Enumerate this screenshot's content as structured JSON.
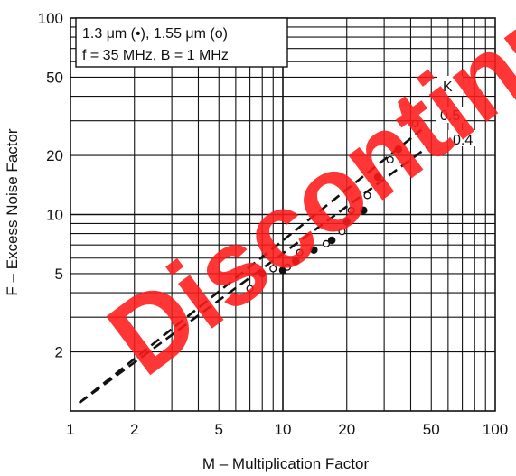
{
  "chart_data": {
    "type": "scatter",
    "xlabel": "M – Multiplication Factor",
    "ylabel": "F – Excess Noise Factor",
    "x_scale": "log",
    "y_scale": "log",
    "xlim": [
      1,
      100
    ],
    "ylim": [
      1,
      100
    ],
    "grid": true,
    "x_ticks": [
      {
        "value": 1,
        "label": "1"
      },
      {
        "value": 2,
        "label": "2"
      },
      {
        "value": 5,
        "label": "5"
      },
      {
        "value": 10,
        "label": "10"
      },
      {
        "value": 20,
        "label": "20"
      },
      {
        "value": 50,
        "label": "50"
      },
      {
        "value": 100,
        "label": "100"
      }
    ],
    "y_ticks": [
      {
        "value": 2,
        "label": "2"
      },
      {
        "value": 5,
        "label": "5"
      },
      {
        "value": 10,
        "label": "10"
      },
      {
        "value": 20,
        "label": "20"
      },
      {
        "value": 50,
        "label": "50"
      },
      {
        "value": 100,
        "label": "100"
      }
    ],
    "annotation_lines": [
      "1.3 μm (•), 1.55 μm (o)",
      "f = 35 MHz, B = 1 MHz"
    ],
    "k_label": "K",
    "series": [
      {
        "name": "1.3 μm",
        "marker": "filled-circle",
        "x": [
          8,
          10,
          11.5,
          14,
          17,
          20,
          24,
          28,
          35
        ],
        "y": [
          5,
          5.2,
          5.8,
          6.6,
          7.4,
          9.2,
          10.5,
          15.5,
          21.5
        ]
      },
      {
        "name": "1.55 μm",
        "marker": "open-circle",
        "x": [
          7,
          9,
          10.5,
          12,
          16,
          19,
          21,
          25,
          32,
          42
        ],
        "y": [
          4.2,
          5.3,
          5.4,
          6.4,
          7.1,
          8.2,
          10.5,
          12.5,
          19,
          29
        ]
      }
    ],
    "k_curves": [
      {
        "k_value": "0.5",
        "x": [
          1.1,
          45
        ],
        "y": [
          1.1,
          27
        ]
      },
      {
        "k_value": "0.4",
        "x": [
          1.1,
          48
        ],
        "y": [
          1.1,
          22
        ]
      }
    ]
  },
  "watermark": "Discontinued",
  "colors": {
    "watermark": "#ff1a1a",
    "ink": "#111111"
  }
}
